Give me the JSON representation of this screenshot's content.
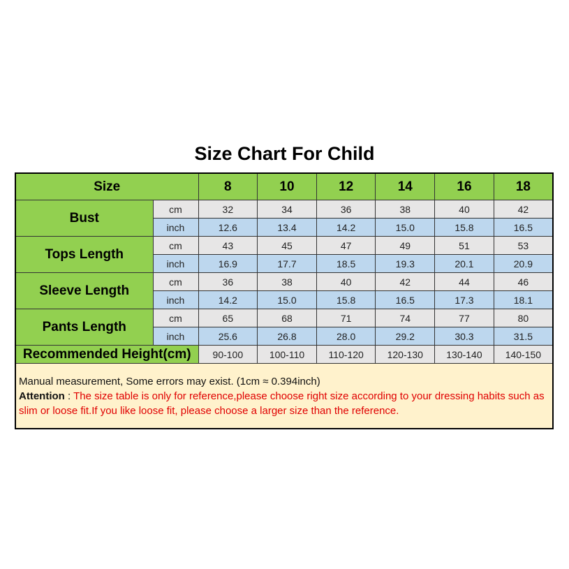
{
  "title": "Size Chart For Child",
  "header": {
    "label": "Size",
    "sizes": [
      "8",
      "10",
      "12",
      "14",
      "16",
      "18"
    ]
  },
  "units": {
    "cm": "cm",
    "inch": "inch"
  },
  "rows": [
    {
      "label": "Bust",
      "cm": [
        "32",
        "34",
        "36",
        "38",
        "40",
        "42"
      ],
      "inch": [
        "12.6",
        "13.4",
        "14.2",
        "15.0",
        "15.8",
        "16.5"
      ]
    },
    {
      "label": "Tops Length",
      "cm": [
        "43",
        "45",
        "47",
        "49",
        "51",
        "53"
      ],
      "inch": [
        "16.9",
        "17.7",
        "18.5",
        "19.3",
        "20.1",
        "20.9"
      ]
    },
    {
      "label": "Sleeve Length",
      "cm": [
        "36",
        "38",
        "40",
        "42",
        "44",
        "46"
      ],
      "inch": [
        "14.2",
        "15.0",
        "15.8",
        "16.5",
        "17.3",
        "18.1"
      ]
    },
    {
      "label": "Pants Length",
      "cm": [
        "65",
        "68",
        "71",
        "74",
        "77",
        "80"
      ],
      "inch": [
        "25.6",
        "26.8",
        "28.0",
        "29.2",
        "30.3",
        "31.5"
      ]
    }
  ],
  "recommended": {
    "label": "Recommended Height(cm)",
    "values": [
      "90-100",
      "100-110",
      "110-120",
      "120-130",
      "130-140",
      "140-150"
    ]
  },
  "note": {
    "line1": "Manual measurement, Some errors may exist.  (1cm ≈ 0.394inch)",
    "attention_label": "Attention",
    "attention_sep": " : ",
    "attention_text": "The size table is only for reference,please choose right size according to your dressing habits such as slim or loose fit.If you like loose fit, please choose a larger size than the reference."
  },
  "colors": {
    "green": "#92d050",
    "cm_row": "#e7e6e6",
    "inch_row": "#bdd7ee",
    "note_bg": "#fff2cc",
    "attention_text": "#e00000"
  }
}
